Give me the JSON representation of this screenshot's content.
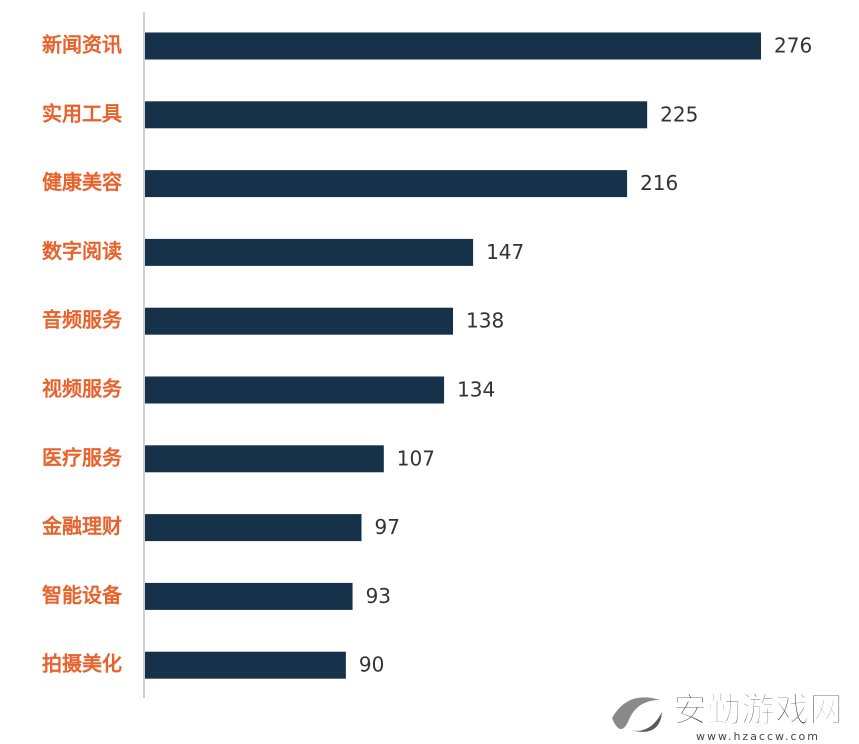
{
  "chart_data": {
    "type": "barh",
    "categories": [
      "新闻资讯",
      "实用工具",
      "健康美容",
      "数字阅读",
      "音频服务",
      "视频服务",
      "医疗服务",
      "金融理财",
      "智能设备",
      "拍摄美化"
    ],
    "values": [
      276,
      225,
      216,
      147,
      138,
      134,
      107,
      97,
      93,
      90
    ],
    "color": "#16324a",
    "label_color": "#e8622c"
  },
  "watermark": {
    "title": "安勤游戏网",
    "url": "www.hzaccw.com"
  }
}
